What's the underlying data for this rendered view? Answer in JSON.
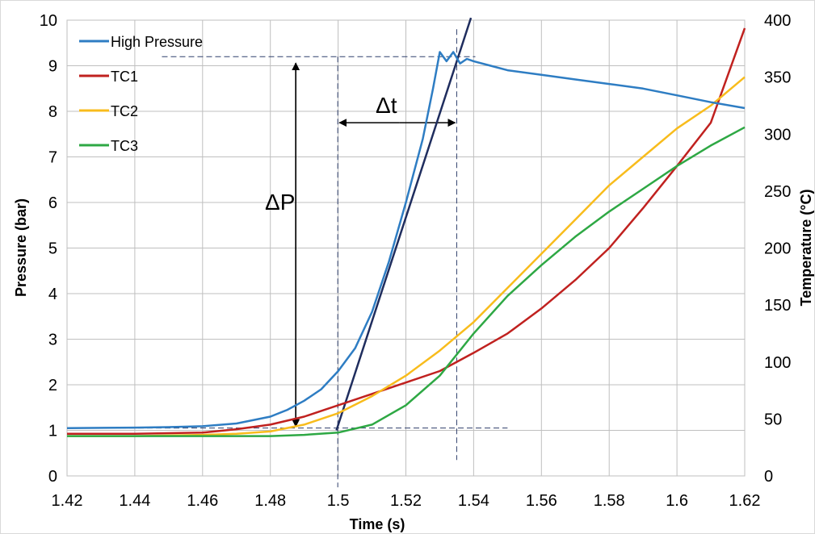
{
  "chart_data": {
    "type": "line",
    "title": "",
    "xlabel": "Time (s)",
    "ylabel": "Pressure (bar)",
    "y2label": "Temperature (°C)",
    "xlim": [
      1.42,
      1.62
    ],
    "ylim": [
      0,
      10
    ],
    "y2lim": [
      0,
      400
    ],
    "x_ticks": [
      "1.42",
      "1.44",
      "1.46",
      "1.48",
      "1.5",
      "1.52",
      "1.54",
      "1.56",
      "1.58",
      "1.6",
      "1.62"
    ],
    "y_ticks": [
      "0",
      "1",
      "2",
      "3",
      "4",
      "5",
      "6",
      "7",
      "8",
      "9",
      "10"
    ],
    "y2_ticks": [
      "0",
      "50",
      "100",
      "150",
      "200",
      "250",
      "300",
      "350",
      "400"
    ],
    "grid": true,
    "legend_position": "top-left",
    "series": [
      {
        "name": "High Pressure",
        "axis": "left",
        "color": "#2E7DC3",
        "x": [
          1.42,
          1.44,
          1.45,
          1.46,
          1.47,
          1.48,
          1.485,
          1.49,
          1.495,
          1.5,
          1.505,
          1.51,
          1.515,
          1.52,
          1.525,
          1.528,
          1.53,
          1.532,
          1.534,
          1.536,
          1.538,
          1.54,
          1.545,
          1.55,
          1.56,
          1.57,
          1.58,
          1.59,
          1.6,
          1.61,
          1.62
        ],
        "y": [
          1.05,
          1.06,
          1.07,
          1.09,
          1.15,
          1.3,
          1.45,
          1.65,
          1.9,
          2.3,
          2.8,
          3.6,
          4.7,
          6.0,
          7.4,
          8.5,
          9.3,
          9.1,
          9.3,
          9.05,
          9.15,
          9.1,
          9.0,
          8.9,
          8.8,
          8.7,
          8.6,
          8.5,
          8.35,
          8.2,
          8.07
        ]
      },
      {
        "name": "TC1",
        "axis": "right",
        "color": "#C0211F",
        "x": [
          1.42,
          1.44,
          1.46,
          1.47,
          1.48,
          1.49,
          1.5,
          1.51,
          1.52,
          1.53,
          1.54,
          1.55,
          1.56,
          1.57,
          1.58,
          1.59,
          1.6,
          1.61,
          1.62
        ],
        "y": [
          37,
          37,
          38,
          41,
          45,
          52,
          62,
          72,
          82,
          92,
          108,
          125,
          147,
          172,
          200,
          235,
          272,
          310,
          393
        ]
      },
      {
        "name": "TC2",
        "axis": "right",
        "color": "#F8BC1C",
        "x": [
          1.42,
          1.44,
          1.46,
          1.47,
          1.48,
          1.49,
          1.5,
          1.51,
          1.52,
          1.53,
          1.54,
          1.55,
          1.56,
          1.57,
          1.58,
          1.59,
          1.6,
          1.61,
          1.62
        ],
        "y": [
          35,
          35,
          36,
          37,
          39,
          45,
          55,
          70,
          88,
          110,
          135,
          165,
          195,
          225,
          255,
          280,
          305,
          325,
          350
        ]
      },
      {
        "name": "TC3",
        "axis": "right",
        "color": "#2EA844",
        "x": [
          1.42,
          1.44,
          1.46,
          1.47,
          1.48,
          1.49,
          1.5,
          1.51,
          1.52,
          1.53,
          1.54,
          1.55,
          1.56,
          1.57,
          1.58,
          1.59,
          1.6,
          1.61,
          1.62
        ],
        "y": [
          35,
          35,
          35,
          35,
          35,
          36,
          38,
          45,
          62,
          88,
          125,
          158,
          185,
          210,
          232,
          252,
          272,
          290,
          306
        ]
      }
    ],
    "annotations": [
      "ΔP",
      "Δt"
    ]
  }
}
